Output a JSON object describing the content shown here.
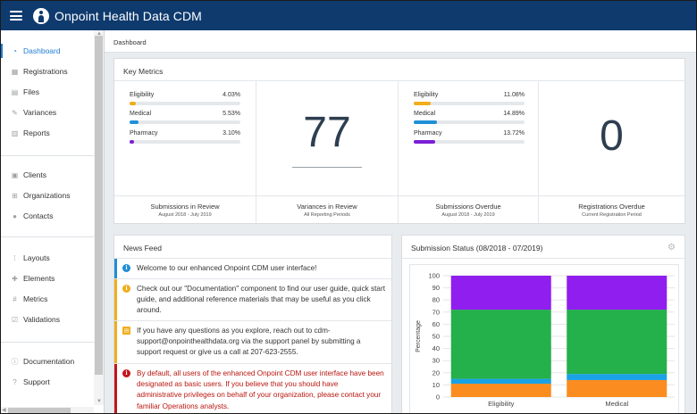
{
  "header": {
    "title": "Onpoint Health Data  CDM",
    "menu_icon": "hamburger-icon",
    "logo": "onpoint-logo"
  },
  "sidebar": {
    "groups": [
      [
        {
          "label": "Dashboard",
          "icon": "dashboard-icon",
          "active": true
        },
        {
          "label": "Registrations",
          "icon": "calendar-icon"
        },
        {
          "label": "Files",
          "icon": "file-icon"
        },
        {
          "label": "Variances",
          "icon": "pencil-icon"
        },
        {
          "label": "Reports",
          "icon": "bar-chart-icon"
        }
      ],
      [
        {
          "label": "Clients",
          "icon": "building-icon"
        },
        {
          "label": "Organizations",
          "icon": "sitemap-icon"
        },
        {
          "label": "Contacts",
          "icon": "users-icon"
        }
      ],
      [
        {
          "label": "Layouts",
          "icon": "grid-icon"
        },
        {
          "label": "Elements",
          "icon": "puzzle-icon"
        },
        {
          "label": "Metrics",
          "icon": "hash-icon"
        },
        {
          "label": "Validations",
          "icon": "check-square-icon"
        }
      ],
      [
        {
          "label": "Documentation",
          "icon": "info-circle-icon"
        },
        {
          "label": "Support",
          "icon": "question-circle-icon"
        }
      ]
    ]
  },
  "breadcrumb": "Dashboard",
  "key_metrics": {
    "title": "Key Metrics",
    "col1": {
      "bars": [
        {
          "label": "Eligibility",
          "pct": "4.03%",
          "value": 4.03,
          "color": "#f0ad1c"
        },
        {
          "label": "Medical",
          "pct": "5.53%",
          "value": 5.53,
          "color": "#1f8fd6"
        },
        {
          "label": "Pharmacy",
          "pct": "3.10%",
          "value": 3.1,
          "color": "#7a1fd6"
        }
      ],
      "foot_title": "Submissions in Review",
      "foot_sub": "August 2018 - July 2019"
    },
    "col2": {
      "value": "77",
      "foot_title": "Variances in Review",
      "foot_sub": "All Reporting Periods"
    },
    "col3": {
      "bars": [
        {
          "label": "Eligibility",
          "pct": "11.08%",
          "value": 11.08,
          "color": "#f0ad1c"
        },
        {
          "label": "Medical",
          "pct": "14.89%",
          "value": 14.89,
          "color": "#1f8fd6"
        },
        {
          "label": "Pharmacy",
          "pct": "13.72%",
          "value": 13.72,
          "color": "#7a1fd6"
        }
      ],
      "foot_title": "Submissions Overdue",
      "foot_sub": "August 2018 - July 2019"
    },
    "col4": {
      "value": "0",
      "foot_title": "Registrations Overdue",
      "foot_sub": "Current Registration Period"
    }
  },
  "news_feed": {
    "title": "News Feed",
    "items": [
      {
        "type": "info",
        "color": "#1f8fd6",
        "icon": "info-icon",
        "text": "Welcome to our enhanced Onpoint CDM user interface!"
      },
      {
        "type": "warning",
        "color": "#f0ad1c",
        "icon": "info-icon",
        "text": "Check out our \"Documentation\" component to find our user guide, quick start guide, and additional reference materials that may be useful as you click around."
      },
      {
        "type": "mail",
        "color": "#f0ad1c",
        "icon": "envelope-icon",
        "text": "If you have any questions as you explore, reach out to cdm-support@onpointhealthdata.org via the support panel by submitting a support request or give us a call at 207-623-2555."
      },
      {
        "type": "danger",
        "color": "#c4161c",
        "icon": "info-icon",
        "text": "By default, all users of the enhanced Onpoint CDM user interface have been designated as basic users. If you believe that you should have administrative privileges on behalf of your organization, please contact your familiar Operations analysts."
      }
    ]
  },
  "submission_status": {
    "title": "Submission Status (08/2018 - 07/2019)",
    "settings_icon": "gear-icon"
  },
  "chart_data": {
    "type": "bar",
    "stacked": true,
    "categories": [
      "Eligibility",
      "Medical"
    ],
    "ylabel": "Percentage",
    "xlabel": "",
    "ylim": [
      0,
      100
    ],
    "yticks": [
      0,
      10,
      20,
      30,
      40,
      50,
      60,
      70,
      80,
      90,
      100
    ],
    "grid": true,
    "series": [
      {
        "color": "#fb8c1f",
        "values": [
          11,
          14
        ]
      },
      {
        "color": "#1aa1e6",
        "values": [
          4,
          5
        ]
      },
      {
        "color": "#24b04a",
        "values": [
          57,
          53
        ]
      },
      {
        "color": "#8f1eef",
        "values": [
          28,
          28
        ]
      }
    ]
  }
}
